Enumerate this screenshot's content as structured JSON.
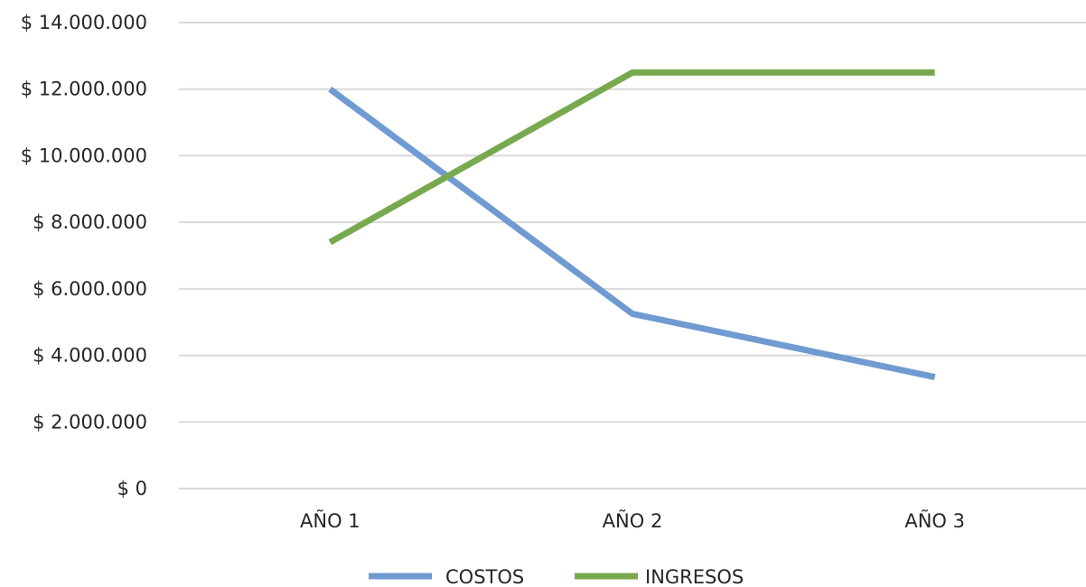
{
  "chart_data": {
    "type": "line",
    "categories": [
      "AÑO 1",
      "AÑO 2",
      "AÑO 3"
    ],
    "series": [
      {
        "name": "COSTOS",
        "values": [
          12000000,
          5250000,
          3350000
        ],
        "color": "#6f9bd1"
      },
      {
        "name": "INGRESOS",
        "values": [
          7400000,
          12500000,
          12500000
        ],
        "color": "#78a94f"
      }
    ],
    "ylim": [
      0,
      14000000
    ],
    "y_ticks": [
      {
        "value": 0,
        "label": "$ 0"
      },
      {
        "value": 2000000,
        "label": "$ 2.000.000"
      },
      {
        "value": 4000000,
        "label": "$ 4.000.000"
      },
      {
        "value": 6000000,
        "label": "$ 6.000.000"
      },
      {
        "value": 8000000,
        "label": "$ 8.000.000"
      },
      {
        "value": 10000000,
        "label": "$ 10.000.000"
      },
      {
        "value": 12000000,
        "label": "$ 12.000.000"
      },
      {
        "value": 14000000,
        "label": "$ 14.000.000"
      }
    ],
    "grid": true,
    "gridline_color": "#d9d9d9",
    "legend_position": "bottom",
    "title": "",
    "xlabel": "",
    "ylabel": ""
  }
}
